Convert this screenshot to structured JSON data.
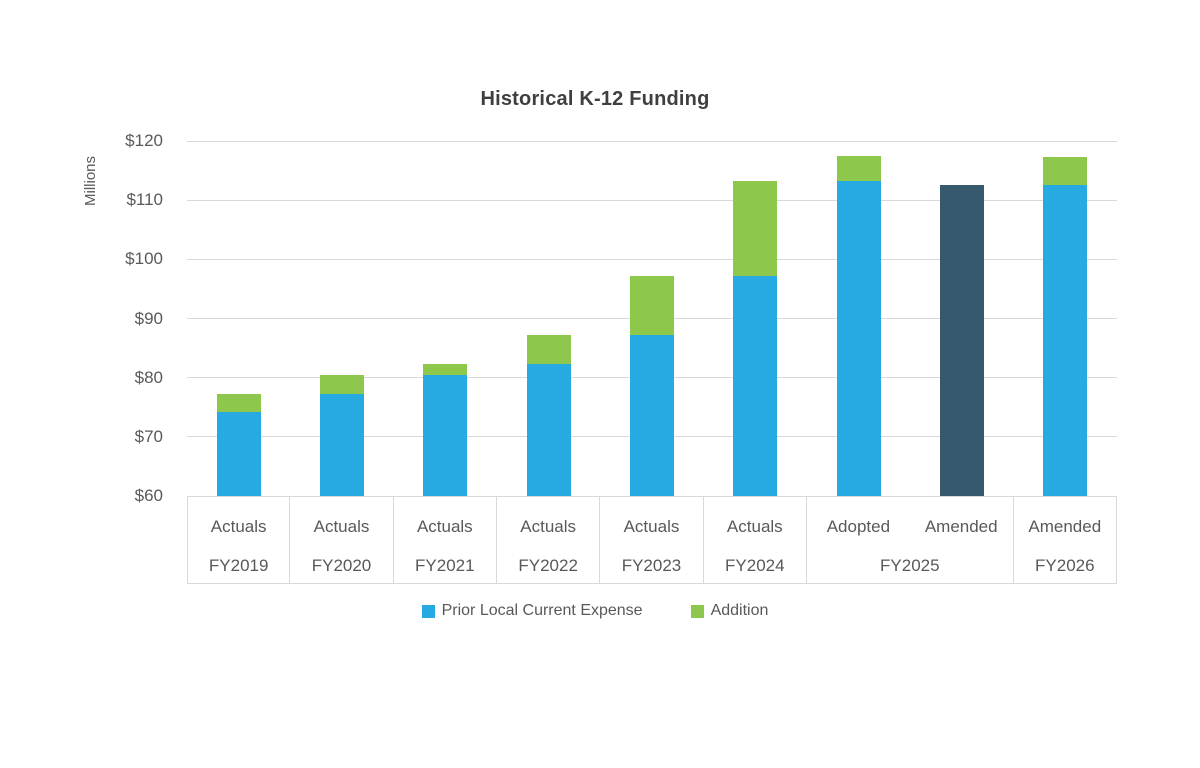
{
  "chart_data": {
    "type": "bar",
    "stacked": true,
    "title": "Historical K-12 Funding",
    "y_axis": {
      "label": "Millions",
      "min": 60,
      "max": 120,
      "step": 10,
      "tick_prefix": "$",
      "tick_labels": [
        "$60",
        "$70",
        "$80",
        "$90",
        "$100",
        "$110",
        "$120"
      ]
    },
    "grid": "horizontal-only",
    "legend_position": "bottom-center",
    "legend": [
      {
        "name": "Prior Local Current Expense",
        "color": "#27AAE1"
      },
      {
        "name": "Addition",
        "color": "#8DC74B"
      }
    ],
    "colors": {
      "prior": "#27AAE1",
      "addition": "#8DC74B",
      "amended": "#37596D",
      "gridline": "#D9D9D9",
      "axis_text": "#595959",
      "title_text": "#3F3F3F"
    },
    "groups": [
      {
        "year": "FY2019",
        "columns": [
          "Actuals"
        ]
      },
      {
        "year": "FY2020",
        "columns": [
          "Actuals"
        ]
      },
      {
        "year": "FY2021",
        "columns": [
          "Actuals"
        ]
      },
      {
        "year": "FY2022",
        "columns": [
          "Actuals"
        ]
      },
      {
        "year": "FY2023",
        "columns": [
          "Actuals"
        ]
      },
      {
        "year": "FY2024",
        "columns": [
          "Actuals"
        ]
      },
      {
        "year": "FY2025",
        "columns": [
          "Adopted",
          "Amended"
        ]
      },
      {
        "year": "FY2026",
        "columns": [
          "Amended"
        ]
      }
    ],
    "bars": [
      {
        "year": "FY2019",
        "status": "Actuals",
        "prior": 74.2,
        "addition": 3.0,
        "total": 77.2
      },
      {
        "year": "FY2020",
        "status": "Actuals",
        "prior": 77.2,
        "addition": 3.3,
        "total": 80.5
      },
      {
        "year": "FY2021",
        "status": "Actuals",
        "prior": 80.5,
        "addition": 1.8,
        "total": 82.3
      },
      {
        "year": "FY2022",
        "status": "Actuals",
        "prior": 82.3,
        "addition": 4.9,
        "total": 87.2
      },
      {
        "year": "FY2023",
        "status": "Actuals",
        "prior": 87.2,
        "addition": 9.9,
        "total": 97.1
      },
      {
        "year": "FY2024",
        "status": "Actuals",
        "prior": 97.1,
        "addition": 16.2,
        "total": 113.3
      },
      {
        "year": "FY2025",
        "status": "Adopted",
        "prior": 113.3,
        "addition": 4.1,
        "total": 117.4
      },
      {
        "year": "FY2025",
        "status": "Amended",
        "amended": 112.6,
        "total": 112.6
      },
      {
        "year": "FY2026",
        "status": "Amended",
        "prior": 112.6,
        "addition": 4.7,
        "total": 117.3
      }
    ]
  }
}
